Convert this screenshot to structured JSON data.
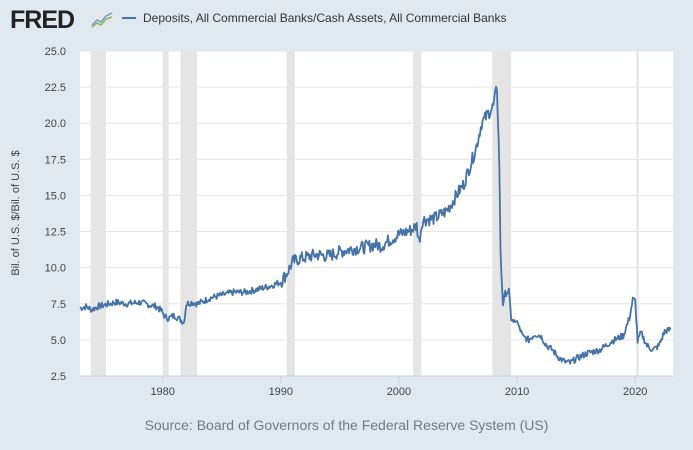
{
  "header": {
    "logo": "FRED",
    "logo_icon": "line-chart-icon",
    "legend_label": "Deposits, All Commercial Banks/Cash Assets, All Commercial Banks",
    "legend_color": "#4572a7"
  },
  "footer": {
    "source": "Source: Board of Governors of the Federal Reserve System (US)"
  },
  "chart_data": {
    "type": "line",
    "title": "Deposits, All Commercial Banks/Cash Assets, All Commercial Banks",
    "xlabel": "",
    "ylabel": "Bil. of U.S. $/Bil. of U.S. $",
    "xlim": [
      1973.0,
      2023.2
    ],
    "ylim": [
      2.5,
      25.0
    ],
    "y_ticks": [
      "2.5",
      "5.0",
      "7.5",
      "10.0",
      "12.5",
      "15.0",
      "17.5",
      "20.0",
      "22.5",
      "25.0"
    ],
    "x_ticks": [
      "1980",
      "1990",
      "2000",
      "2010",
      "2020"
    ],
    "grid": true,
    "legend_position": "top",
    "series": [
      {
        "name": "Deposits, All Commercial Banks/Cash Assets, All Commercial Banks",
        "color": "#4572a7",
        "x": [
          1973.0,
          1973.5,
          1974.0,
          1974.5,
          1975.0,
          1975.5,
          1976.0,
          1977.0,
          1978.0,
          1979.0,
          1979.5,
          1979.9,
          1980.2,
          1980.5,
          1981.0,
          1981.5,
          1981.8,
          1982.0,
          1982.5,
          1983.0,
          1984.0,
          1985.0,
          1986.0,
          1987.0,
          1988.0,
          1989.0,
          1990.0,
          1990.5,
          1991.0,
          1991.5,
          1992.0,
          1993.0,
          1994.0,
          1995.0,
          1996.0,
          1997.0,
          1998.0,
          1998.5,
          1999.0,
          2000.0,
          2001.0,
          2001.5,
          2001.7,
          2002.0,
          2003.0,
          2004.0,
          2004.5,
          2005.0,
          2005.5,
          2006.0,
          2006.5,
          2007.0,
          2007.5,
          2008.0,
          2008.3,
          2008.5,
          2008.6,
          2008.8,
          2009.0,
          2009.3,
          2009.5,
          2009.7,
          2010.0,
          2010.5,
          2011.0,
          2011.5,
          2012.0,
          2012.5,
          2013.0,
          2013.5,
          2014.0,
          2014.5,
          2015.0,
          2016.0,
          2017.0,
          2018.0,
          2019.0,
          2019.5,
          2019.8,
          2020.0,
          2020.2,
          2020.5,
          2021.0,
          2021.5,
          2022.0,
          2022.5,
          2023.0
        ],
        "values": [
          7.2,
          7.3,
          7.1,
          7.3,
          7.4,
          7.5,
          7.6,
          7.5,
          7.6,
          7.4,
          7.3,
          7.0,
          6.6,
          6.5,
          6.7,
          6.4,
          6.2,
          7.5,
          7.6,
          7.5,
          7.9,
          8.1,
          8.3,
          8.3,
          8.5,
          8.7,
          9.0,
          9.6,
          10.4,
          10.6,
          10.7,
          10.9,
          10.8,
          11.1,
          11.3,
          11.4,
          11.6,
          11.5,
          11.8,
          12.3,
          12.6,
          12.9,
          11.8,
          13.3,
          13.4,
          13.9,
          14.5,
          15.2,
          15.8,
          17.0,
          18.2,
          20.0,
          20.6,
          21.2,
          22.5,
          17.0,
          11.0,
          7.5,
          8.2,
          8.4,
          6.5,
          6.2,
          6.3,
          5.2,
          5.0,
          5.4,
          5.3,
          4.6,
          4.3,
          3.8,
          3.5,
          3.4,
          3.7,
          4.1,
          4.3,
          4.9,
          5.3,
          6.5,
          7.8,
          7.7,
          4.9,
          5.5,
          4.6,
          4.3,
          4.6,
          5.6,
          5.7
        ]
      }
    ],
    "recessions": [
      [
        1973.9,
        1975.2
      ],
      [
        1980.0,
        1980.5
      ],
      [
        1981.5,
        1982.9
      ],
      [
        1990.5,
        1991.2
      ],
      [
        2001.2,
        2001.9
      ],
      [
        2007.9,
        2009.5
      ],
      [
        2020.1,
        2020.3
      ]
    ]
  }
}
